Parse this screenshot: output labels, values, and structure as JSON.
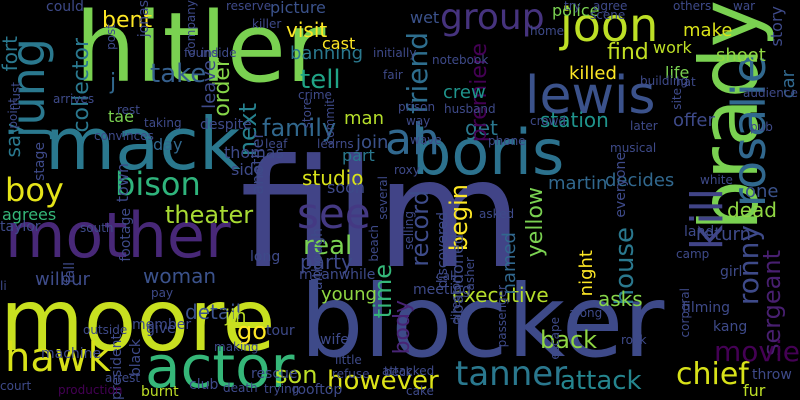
{
  "words": [
    {
      "text": "film",
      "color": "#414487",
      "rot": 0
    },
    {
      "text": "hitler",
      "color": "#7ad151",
      "rot": 0
    },
    {
      "text": "blocker",
      "color": "#3e4a89",
      "rot": 0
    },
    {
      "text": "moore",
      "color": "#c8e020",
      "rot": 0
    },
    {
      "text": "mack",
      "color": "#2a788e",
      "rot": 0
    },
    {
      "text": "mother",
      "color": "#482878",
      "rot": 0
    },
    {
      "text": "boris",
      "color": "#2c728e",
      "rot": 0
    },
    {
      "text": "brady",
      "color": "#7ad151",
      "rot": -90
    },
    {
      "text": "actor",
      "color": "#35b779",
      "rot": 0
    },
    {
      "text": "rosalie",
      "color": "#31688e",
      "rot": -90
    },
    {
      "text": "hawk",
      "color": "#d8e219",
      "rot": 0
    },
    {
      "text": "jung",
      "color": "#2a788e",
      "rot": -90
    },
    {
      "text": "lewis",
      "color": "#3b528b",
      "rot": 0
    },
    {
      "text": "joon",
      "color": "#bddf26",
      "rot": 0
    },
    {
      "text": "boy",
      "color": "#e5e419",
      "rot": 0
    },
    {
      "text": "bison",
      "color": "#2fb47c",
      "rot": 0
    },
    {
      "text": "see",
      "color": "#443983",
      "rot": 0
    },
    {
      "text": "ah",
      "color": "#31688e",
      "rot": 0
    },
    {
      "text": "kill",
      "color": "#414487",
      "rot": -90
    },
    {
      "text": "tanner",
      "color": "#2a788e",
      "rot": 0
    },
    {
      "text": "chief",
      "color": "#d8e219",
      "rot": 0
    },
    {
      "text": "attack",
      "color": "#25858e",
      "rot": 0
    },
    {
      "text": "however",
      "color": "#dde318",
      "rot": 0
    },
    {
      "text": "group",
      "color": "#46337e",
      "rot": 0
    },
    {
      "text": "begin",
      "color": "#fde725",
      "rot": -90
    },
    {
      "text": "ronny",
      "color": "#3e4a89",
      "rot": -90
    },
    {
      "text": "sergeant",
      "color": "#481f70",
      "rot": -90
    },
    {
      "text": "movie",
      "color": "#440154",
      "rot": 0
    },
    {
      "text": "theater",
      "color": "#a8db34",
      "rot": 0
    },
    {
      "text": "executive",
      "color": "#b5de2b",
      "rot": 0
    },
    {
      "text": "body",
      "color": "#482475",
      "rot": -90
    },
    {
      "text": "back",
      "color": "#90d743",
      "rot": 0
    },
    {
      "text": "family",
      "color": "#31688e",
      "rot": 0
    },
    {
      "text": "take",
      "color": "#355f8d",
      "rot": 0
    },
    {
      "text": "tell",
      "color": "#20a386",
      "rot": 0
    },
    {
      "text": "friend",
      "color": "#2e6e8e",
      "rot": -90
    },
    {
      "text": "next",
      "color": "#26818e",
      "rot": -90
    },
    {
      "text": "order",
      "color": "#86d549",
      "rot": -90
    },
    {
      "text": "record",
      "color": "#3e4c8a",
      "rot": -90
    },
    {
      "text": "house",
      "color": "#2a788e",
      "rot": -90
    },
    {
      "text": "real",
      "color": "#7ad151",
      "rot": 0
    },
    {
      "text": "go",
      "color": "#fde725",
      "rot": 0
    },
    {
      "text": "son",
      "color": "#bddf26",
      "rot": 0
    },
    {
      "text": "station",
      "color": "#1f948c",
      "rot": 0
    },
    {
      "text": "get",
      "color": "#2a788e",
      "rot": 0
    },
    {
      "text": "find",
      "color": "#c2df23",
      "rot": 0
    },
    {
      "text": "bent",
      "color": "#fde725",
      "rot": 0
    },
    {
      "text": "visit",
      "color": "#fde725",
      "rot": 0
    },
    {
      "text": "studio",
      "color": "#d8e219",
      "rot": 0
    },
    {
      "text": "party",
      "color": "#3e4a89",
      "rot": 0
    },
    {
      "text": "woman",
      "color": "#3b528b",
      "rot": 0
    },
    {
      "text": "wilbur",
      "color": "#3e4c8a",
      "rot": 0
    },
    {
      "text": "detail",
      "color": "#3b528b",
      "rot": 0
    },
    {
      "text": "collector",
      "color": "#2a788e",
      "rot": -90
    },
    {
      "text": "fort",
      "color": "#2a788e",
      "rot": -90
    },
    {
      "text": "say",
      "color": "#2a788e",
      "rot": -90
    },
    {
      "text": "time",
      "color": "#35b779",
      "rot": -90
    },
    {
      "text": "yellow",
      "color": "#7ad151",
      "rot": -90
    },
    {
      "text": "premiere",
      "color": "#440154",
      "rot": -90
    },
    {
      "text": "killed",
      "color": "#fde725",
      "rot": 0
    },
    {
      "text": "shoot",
      "color": "#90d743",
      "rot": 0
    },
    {
      "text": "crew",
      "color": "#1f948c",
      "rot": 0
    },
    {
      "text": "join",
      "color": "#3b528b",
      "rot": 0
    },
    {
      "text": "man",
      "color": "#b5de2b",
      "rot": 0
    },
    {
      "text": "decides",
      "color": "#31688e",
      "rot": 0
    },
    {
      "text": "martin",
      "color": "#31688e",
      "rot": 0
    },
    {
      "text": "asks",
      "color": "#86d549",
      "rot": 0
    },
    {
      "text": "agrees",
      "color": "#35b779",
      "rot": 0
    },
    {
      "text": "dead",
      "color": "#90d743",
      "rot": 0
    },
    {
      "text": "one",
      "color": "#3b528b",
      "rot": 0
    },
    {
      "text": "return",
      "color": "#3e4a89",
      "rot": 0
    },
    {
      "text": "young",
      "color": "#90d743",
      "rot": 0
    },
    {
      "text": "banning",
      "color": "#2a788e",
      "rot": 0
    },
    {
      "text": "cast",
      "color": "#fde725",
      "rot": 0
    },
    {
      "text": "picture",
      "color": "#3b528b",
      "rot": 0
    },
    {
      "text": "wet",
      "color": "#3b528b",
      "rot": 0
    },
    {
      "text": "police",
      "color": "#7ad151",
      "rot": 0
    },
    {
      "text": "make",
      "color": "#d8e219",
      "rot": 0
    },
    {
      "text": "work",
      "color": "#bddf26",
      "rot": 0
    },
    {
      "text": "life",
      "color": "#7ad151",
      "rot": 0
    },
    {
      "text": "offer",
      "color": "#3e4a89",
      "rot": 0
    },
    {
      "text": "car",
      "color": "#31688e",
      "rot": -90
    },
    {
      "text": "story",
      "color": "#3e4a89",
      "rot": -90
    },
    {
      "text": "thomas",
      "color": "#3e4a89",
      "rot": 0
    },
    {
      "text": "side",
      "color": "#3e4a89",
      "rot": 0
    },
    {
      "text": "day",
      "color": "#31688e",
      "rot": 0
    },
    {
      "text": "town",
      "color": "#3e4a89",
      "rot": -90
    },
    {
      "text": "part",
      "color": "#2a788e",
      "rot": 0
    },
    {
      "text": "soon",
      "color": "#3e4a89",
      "rot": 0
    },
    {
      "text": "named",
      "color": "#31688e",
      "rot": -90
    },
    {
      "text": "abandoned",
      "color": "#3e4a89",
      "rot": -90
    },
    {
      "text": "leave",
      "color": "#3e4a89",
      "rot": -90
    },
    {
      "text": "another",
      "color": "#3e4a89",
      "rot": -90
    },
    {
      "text": "j",
      "color": "#31688e",
      "rot": 0
    },
    {
      "text": "tae",
      "color": "#7ad151",
      "rot": 0
    },
    {
      "text": "jin",
      "color": "#bddf26",
      "rot": 0
    },
    {
      "text": "kang",
      "color": "#3e4a89",
      "rot": 0
    },
    {
      "text": "fur",
      "color": "#bddf26",
      "rot": 0
    },
    {
      "text": "night",
      "color": "#fde725",
      "rot": -90
    },
    {
      "text": "could",
      "color": "#3e4a89",
      "rot": 0
    },
    {
      "text": "stage",
      "color": "#3e4a89",
      "rot": -90
    },
    {
      "text": "member",
      "color": "#3e4a89",
      "rot": 0
    },
    {
      "text": "black",
      "color": "#3e4a89",
      "rot": -90
    },
    {
      "text": "president",
      "color": "#3e4a89",
      "rot": -90
    },
    {
      "text": "machine",
      "color": "#3e4a89",
      "rot": 0
    },
    {
      "text": "court",
      "color": "#3e4a89",
      "rot": 0
    },
    {
      "text": "production",
      "color": "#440154",
      "rot": 0
    },
    {
      "text": "arrest",
      "color": "#3e4a89",
      "rot": 0
    },
    {
      "text": "burnt",
      "color": "#bddf26",
      "rot": 0
    },
    {
      "text": "club",
      "color": "#3e4a89",
      "rot": 0
    },
    {
      "text": "death",
      "color": "#3e4a89",
      "rot": 0
    },
    {
      "text": "trying",
      "color": "#3e4a89",
      "rot": 0
    },
    {
      "text": "rooftop",
      "color": "#3e4a89",
      "rot": 0
    },
    {
      "text": "refuse",
      "color": "#3e4a89",
      "rot": 0
    },
    {
      "text": "beck",
      "color": "#3e4a89",
      "rot": 0
    },
    {
      "text": "attacked",
      "color": "#3e4a89",
      "rot": 0
    },
    {
      "text": "cake",
      "color": "#3e4a89",
      "rot": 0
    },
    {
      "text": "rescue",
      "color": "#3e4a89",
      "rot": 0
    },
    {
      "text": "making",
      "color": "#3e4a89",
      "rot": 0
    },
    {
      "text": "tour",
      "color": "#3e4a89",
      "rot": 0
    },
    {
      "text": "wife",
      "color": "#3e4a89",
      "rot": 0
    },
    {
      "text": "meeting",
      "color": "#3e4a89",
      "rot": 0
    },
    {
      "text": "meanwhile",
      "color": "#3e4a89",
      "rot": 0
    },
    {
      "text": "little",
      "color": "#3e4a89",
      "rot": 0
    },
    {
      "text": "although",
      "color": "#3e4a89",
      "rot": -90
    },
    {
      "text": "beach",
      "color": "#3e4a89",
      "rot": -90
    },
    {
      "text": "discovered",
      "color": "#3e4a89",
      "rot": -90
    },
    {
      "text": "director",
      "color": "#3e4a89",
      "rot": -90
    },
    {
      "text": "passenger",
      "color": "#3e4a89",
      "rot": -90
    },
    {
      "text": "asked",
      "color": "#3e4a89",
      "rot": 0
    },
    {
      "text": "selling",
      "color": "#3e4a89",
      "rot": -90
    },
    {
      "text": "escape",
      "color": "#3e4a89",
      "rot": -90
    },
    {
      "text": "along",
      "color": "#3e4a89",
      "rot": 0
    },
    {
      "text": "rock",
      "color": "#3e4a89",
      "rot": 0
    },
    {
      "text": "throw",
      "color": "#3e4a89",
      "rot": 0
    },
    {
      "text": "land",
      "color": "#3e4a89",
      "rot": 0
    },
    {
      "text": "girl",
      "color": "#3e4a89",
      "rot": 0
    },
    {
      "text": "corporal",
      "color": "#3e4a89",
      "rot": -90
    },
    {
      "text": "filming",
      "color": "#3e4a89",
      "rot": 0
    },
    {
      "text": "camp",
      "color": "#3e4a89",
      "rot": 0
    },
    {
      "text": "white",
      "color": "#3e4a89",
      "rot": 0
    },
    {
      "text": "everyone",
      "color": "#3e4a89",
      "rot": -90
    },
    {
      "text": "musical",
      "color": "#3e4a89",
      "rot": 0
    },
    {
      "text": "later",
      "color": "#3e4a89",
      "rot": 0
    },
    {
      "text": "pub",
      "color": "#3e4a89",
      "rot": 0
    },
    {
      "text": "audience",
      "color": "#3e4a89",
      "rot": 0
    },
    {
      "text": "site",
      "color": "#3e4a89",
      "rot": -90
    },
    {
      "text": "hat",
      "color": "#3e4a89",
      "rot": 0
    },
    {
      "text": "building",
      "color": "#3e4a89",
      "rot": 0
    },
    {
      "text": "husband",
      "color": "#3e4a89",
      "rot": 0
    },
    {
      "text": "notebook",
      "color": "#3e4a89",
      "rot": 0
    },
    {
      "text": "home",
      "color": "#3e4a89",
      "rot": 0
    },
    {
      "text": "scene",
      "color": "#3e4a89",
      "rot": 0
    },
    {
      "text": "agree",
      "color": "#3e4a89",
      "rot": 0
    },
    {
      "text": "try",
      "color": "#3e4a89",
      "rot": 0
    },
    {
      "text": "others",
      "color": "#3e4a89",
      "rot": 0
    },
    {
      "text": "war",
      "color": "#3e4a89",
      "rot": 0
    },
    {
      "text": "reserve",
      "color": "#3e4a89",
      "rot": 0
    },
    {
      "text": "killer",
      "color": "#3e4a89",
      "rot": 0
    },
    {
      "text": "jonas",
      "color": "#3e4a89",
      "rot": -90
    },
    {
      "text": "post",
      "color": "#3e4a89",
      "rot": -90
    },
    {
      "text": "company",
      "color": "#3e4a89",
      "rot": -90
    },
    {
      "text": "found",
      "color": "#3e4a89",
      "rot": 0
    },
    {
      "text": "inside",
      "color": "#3e4a89",
      "rot": 0
    },
    {
      "text": "crime",
      "color": "#3e4a89",
      "rot": 0
    },
    {
      "text": "store",
      "color": "#3e4a89",
      "rot": -90
    },
    {
      "text": "commit",
      "color": "#3e4a89",
      "rot": -90
    },
    {
      "text": "fair",
      "color": "#3e4a89",
      "rot": 0
    },
    {
      "text": "initially",
      "color": "#3e4a89",
      "rot": 0
    },
    {
      "text": "prison",
      "color": "#3e4a89",
      "rot": 0
    },
    {
      "text": "way",
      "color": "#3e4a89",
      "rot": 0
    },
    {
      "text": "wave",
      "color": "#3e4a89",
      "rot": 0
    },
    {
      "text": "crowd",
      "color": "#3e4a89",
      "rot": 0
    },
    {
      "text": "phone",
      "color": "#3e4a89",
      "rot": 0
    },
    {
      "text": "taking",
      "color": "#3e4a89",
      "rot": 0
    },
    {
      "text": "despite",
      "color": "#3e4a89",
      "rot": 0
    },
    {
      "text": "leaf",
      "color": "#3e4a89",
      "rot": 0
    },
    {
      "text": "learns",
      "color": "#3e4a89",
      "rot": 0
    },
    {
      "text": "several",
      "color": "#3e4a89",
      "rot": -90
    },
    {
      "text": "roxy",
      "color": "#3e4a89",
      "rot": 0
    },
    {
      "text": "convinces",
      "color": "#3e4a89",
      "rot": 0
    },
    {
      "text": "footage",
      "color": "#3e4a89",
      "rot": -90
    },
    {
      "text": "taylor",
      "color": "#3e4a89",
      "rot": 0
    },
    {
      "text": "south",
      "color": "#3e4a89",
      "rot": 0
    },
    {
      "text": "fall",
      "color": "#3e4a89",
      "rot": -90
    },
    {
      "text": "li",
      "color": "#3e4a89",
      "rot": 0
    },
    {
      "text": "outside",
      "color": "#3e4a89",
      "rot": 0
    },
    {
      "text": "give",
      "color": "#3e4a89",
      "rot": 0
    },
    {
      "text": "pay",
      "color": "#3e4a89",
      "rot": 0
    },
    {
      "text": "long",
      "color": "#3e4a89",
      "rot": 0
    },
    {
      "text": "asher",
      "color": "#3e4a89",
      "rot": -90
    },
    {
      "text": "call",
      "color": "#3e4a89",
      "rot": 0
    },
    {
      "text": "point",
      "color": "#3e4a89",
      "rot": -90
    },
    {
      "text": "trust",
      "color": "#3e4a89",
      "rot": -90
    },
    {
      "text": "arrives",
      "color": "#3e4a89",
      "rot": 0
    },
    {
      "text": "rest",
      "color": "#3e4a89",
      "rot": 0
    }
  ]
}
